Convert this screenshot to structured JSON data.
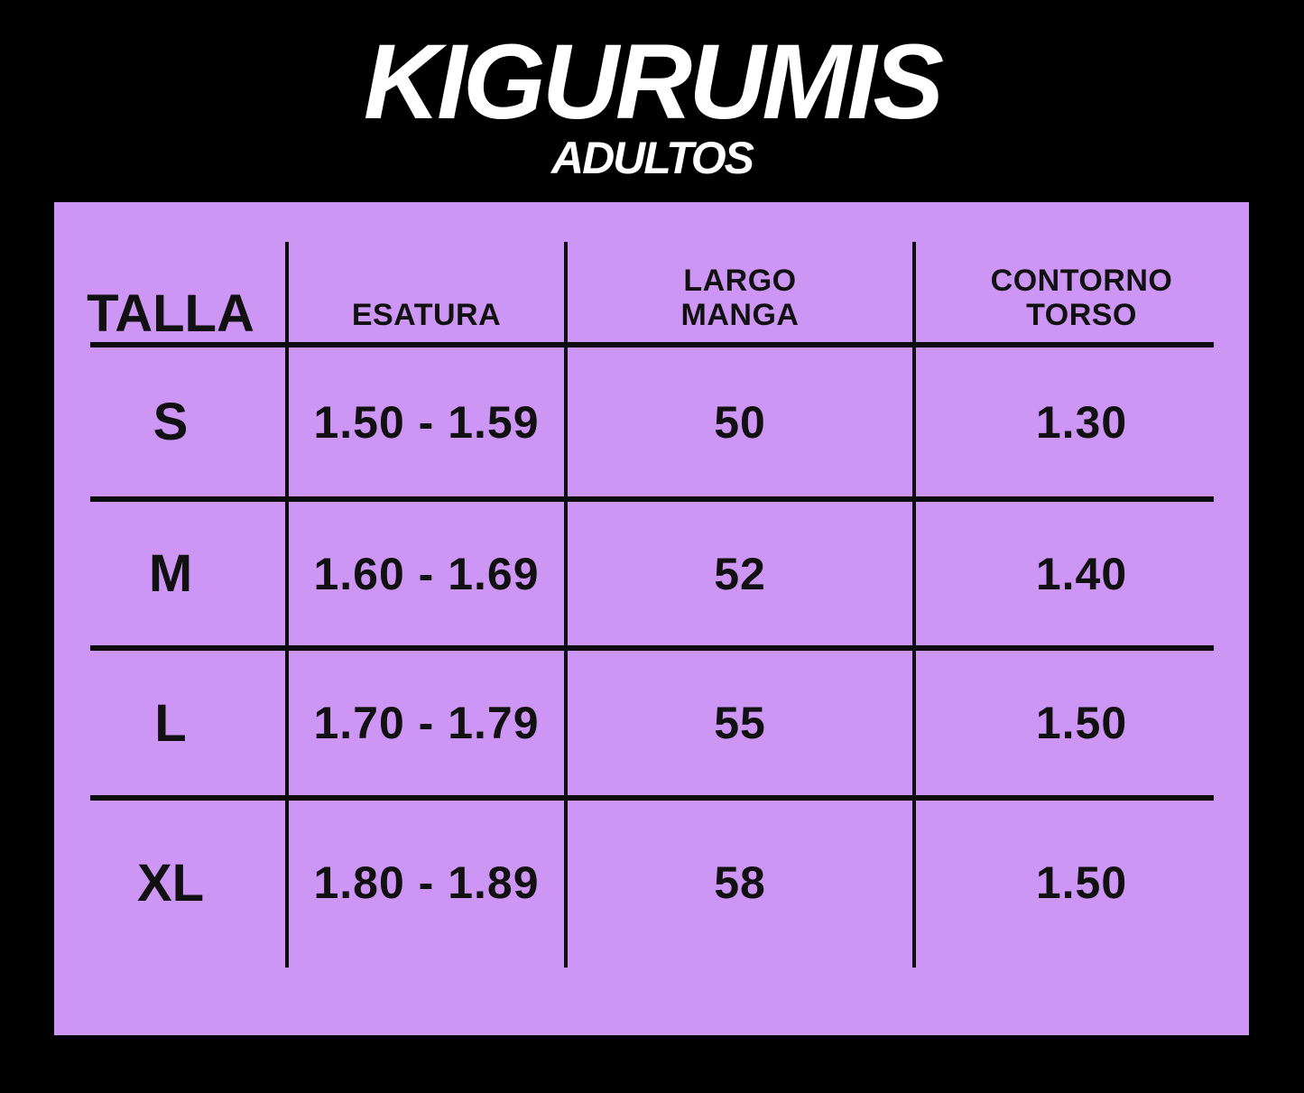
{
  "header": {
    "title": "KIGURUMIS",
    "subtitle": "ADULTOS"
  },
  "colors": {
    "background": "#000000",
    "panel": "#cd96f4",
    "title_text": "#ffffff",
    "table_text": "#111111"
  },
  "table": {
    "headers": [
      {
        "line1": "TALLA",
        "line2": ""
      },
      {
        "line1": "ESATURA",
        "line2": ""
      },
      {
        "line1": "LARGO",
        "line2": "MANGA"
      },
      {
        "line1": "CONTORNO",
        "line2": "TORSO"
      }
    ],
    "rows": [
      {
        "cells": [
          "S",
          "1.50 - 1.59",
          "50",
          "1.30"
        ]
      },
      {
        "cells": [
          "M",
          "1.60 - 1.69",
          "52",
          "1.40"
        ]
      },
      {
        "cells": [
          "L",
          "1.70 - 1.79",
          "55",
          "1.50"
        ]
      },
      {
        "cells": [
          "XL",
          "1.80 - 1.89",
          "58",
          "1.50"
        ]
      }
    ]
  },
  "chart_data": {
    "type": "table",
    "title": "KIGURUMIS ADULTOS",
    "columns": [
      "TALLA",
      "ESATURA",
      "LARGO MANGA",
      "CONTORNO TORSO"
    ],
    "rows": [
      [
        "S",
        "1.50 - 1.59",
        "50",
        "1.30"
      ],
      [
        "M",
        "1.60 - 1.69",
        "52",
        "1.40"
      ],
      [
        "L",
        "1.70 - 1.79",
        "55",
        "1.50"
      ],
      [
        "XL",
        "1.80 - 1.89",
        "58",
        "1.50"
      ]
    ]
  }
}
